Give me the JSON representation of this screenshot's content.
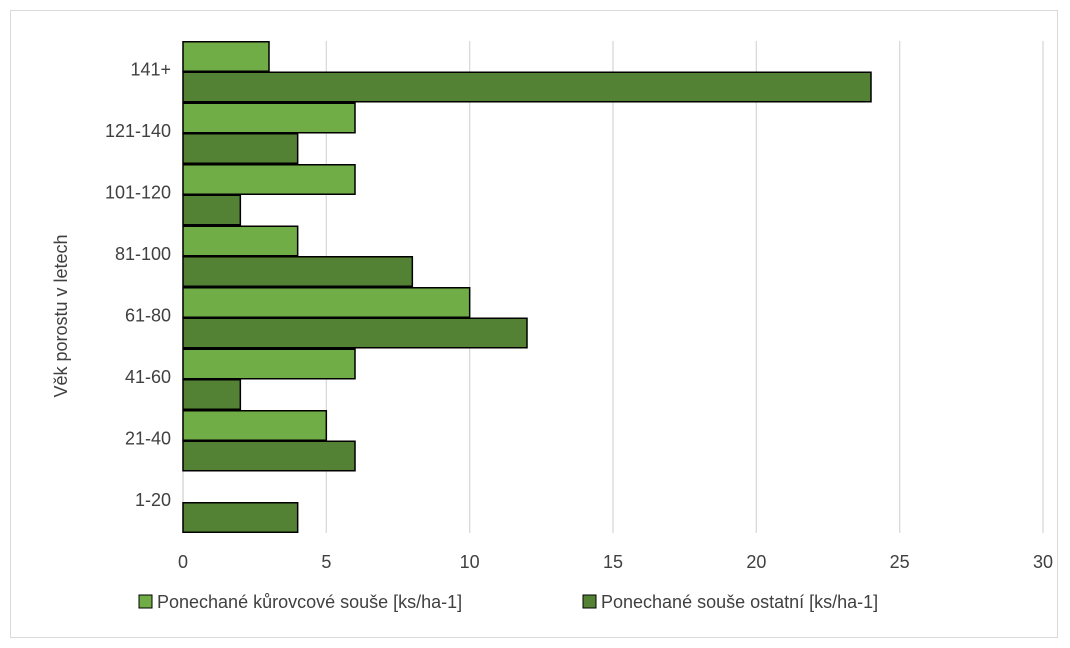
{
  "chart_data": {
    "type": "bar",
    "orientation": "horizontal",
    "categories": [
      "1-20",
      "21-40",
      "41-60",
      "61-80",
      "81-100",
      "101-120",
      "121-140",
      "141+"
    ],
    "series": [
      {
        "name": "Ponechané kůrovcové souše [ks/ha-1]",
        "values": [
          0,
          5,
          6,
          10,
          4,
          6,
          6,
          3
        ]
      },
      {
        "name": "Ponechané souše ostatní [ks/ha-1]",
        "values": [
          4,
          6,
          2,
          12,
          8,
          2,
          4,
          24
        ]
      }
    ],
    "xlabel": "",
    "ylabel": "Věk porostu v letech",
    "xlim": [
      0,
      30
    ],
    "xticks": [
      0,
      5,
      10,
      15,
      20,
      25,
      30
    ],
    "grid": "vertical",
    "legend_position": "bottom",
    "colors": {
      "series1": "#70ad47",
      "series2": "#548235",
      "grid": "#d9d9d9",
      "outline": "#000000"
    }
  }
}
